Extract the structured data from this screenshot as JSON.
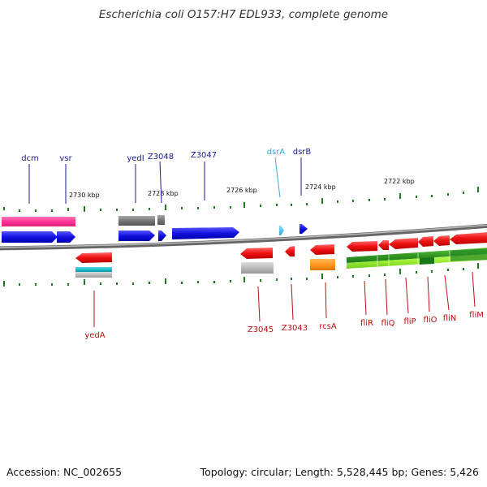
{
  "title": "Escherichia coli O157:H7 EDL933, complete genome",
  "footer": {
    "accession": "Accession: NC_002655",
    "topology": "Topology: circular; Length: 5,528,445 bp; Genes: 5,426"
  },
  "ticks": [
    "2730 kbp",
    "2728 kbp",
    "2726 kbp",
    "2724 kbp",
    "2722 kbp"
  ],
  "genes_top": [
    "dcm",
    "vsr",
    "yedI",
    "Z3048",
    "Z3047",
    "dsrA",
    "dsrB"
  ],
  "genes_bottom": [
    "yedA",
    "Z3045",
    "Z3043",
    "rcsA",
    "fliR",
    "fliQ",
    "fliP",
    "fliO",
    "fliN",
    "fliM"
  ],
  "colors": {
    "forward_gene": "#1111dd",
    "reverse_gene": "#ee1111",
    "top_label": "#1a1a9a",
    "bottom_label": "#bb1111",
    "dsrA_label": "#33aadd",
    "pink_bar": "#ff3399",
    "gray_bar": "#888888",
    "orange_bar": "#ff9922",
    "green_bar": "#33aa33",
    "tick": "#227722"
  }
}
